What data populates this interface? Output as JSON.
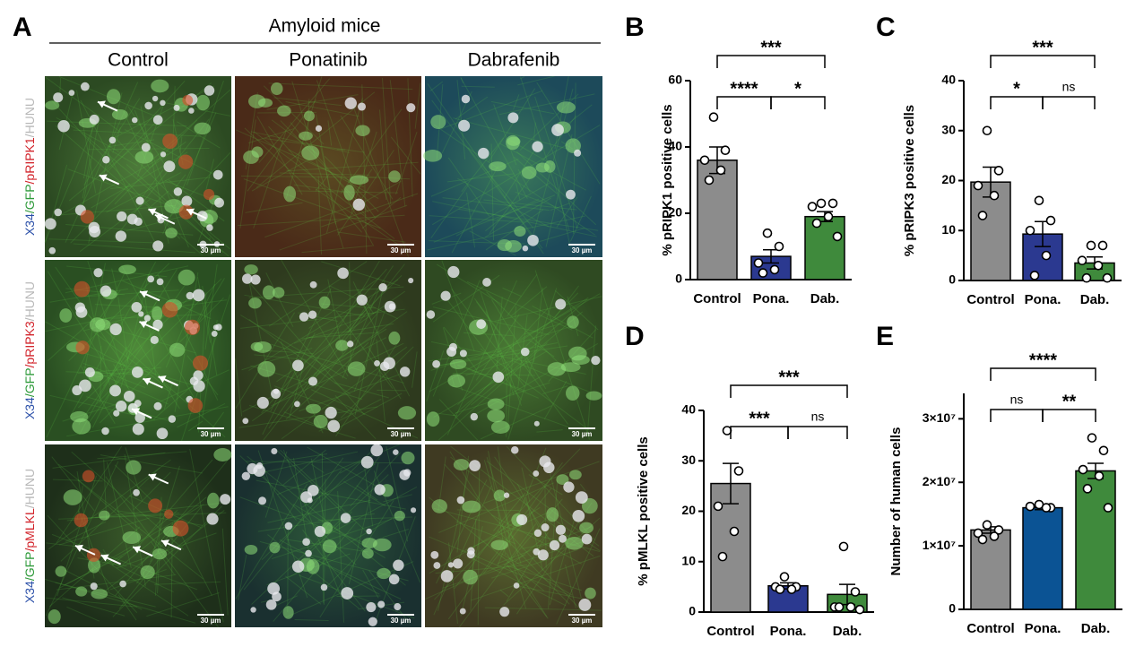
{
  "panel_a": {
    "label": "A",
    "group": "Amyloid mice",
    "columns": [
      "Control",
      "Ponatinib",
      "Dabrafenib"
    ],
    "rows": [
      [
        "X34",
        "/GFP",
        "/pRIPK1",
        "/HUNU"
      ],
      [
        "X34",
        "/GFP",
        "/pRIPK3",
        "/HUNU"
      ],
      [
        "X34",
        "/GFP",
        "/pMLKL",
        "/HUNU"
      ]
    ],
    "scale_bar": "30 µm"
  },
  "chart_data": [
    {
      "type": "bar",
      "label": "B",
      "ylabel": "% pRIPK1 positive cells",
      "categories": [
        "Control",
        "Pona.",
        "Dab."
      ],
      "colors": [
        "#8c8c8c",
        "#2b3990",
        "#3f8a3c"
      ],
      "values": [
        36,
        7,
        19
      ],
      "errors": [
        4,
        2,
        1.5
      ],
      "points": [
        [
          49,
          39,
          36,
          33,
          30
        ],
        [
          14,
          10,
          5,
          3,
          2
        ],
        [
          23,
          23,
          22,
          19,
          17,
          13
        ]
      ],
      "ylim": [
        0,
        60
      ],
      "yticks": [
        0,
        20,
        40,
        60
      ],
      "significance": [
        {
          "text": "****",
          "pair": [
            0,
            1
          ]
        },
        {
          "text": "*",
          "pair": [
            1,
            2
          ]
        },
        {
          "text": "***",
          "pair": [
            0,
            2
          ]
        }
      ]
    },
    {
      "type": "bar",
      "label": "C",
      "ylabel": "% pRIPK3 positive cells",
      "categories": [
        "Control",
        "Pona.",
        "Dab."
      ],
      "colors": [
        "#8c8c8c",
        "#2b3990",
        "#3f8a3c"
      ],
      "values": [
        19.7,
        9.3,
        3.5
      ],
      "errors": [
        3,
        2.5,
        1.2
      ],
      "points": [
        [
          30,
          22,
          19,
          17,
          13
        ],
        [
          16,
          12,
          10,
          5,
          1
        ],
        [
          7,
          7,
          4,
          3,
          0.5,
          0.5
        ]
      ],
      "ylim": [
        0,
        40
      ],
      "yticks": [
        0,
        10,
        20,
        30,
        40
      ],
      "significance": [
        {
          "text": "*",
          "pair": [
            0,
            1
          ]
        },
        {
          "text": "ns",
          "pair": [
            1,
            2
          ]
        },
        {
          "text": "***",
          "pair": [
            0,
            2
          ]
        }
      ]
    },
    {
      "type": "bar",
      "label": "D",
      "ylabel": "% pMLKL positive cells",
      "categories": [
        "Control",
        "Pona.",
        "Dab."
      ],
      "colors": [
        "#8c8c8c",
        "#2b3990",
        "#3f8a3c"
      ],
      "values": [
        25.5,
        5.2,
        3.5
      ],
      "errors": [
        4,
        0.6,
        2
      ],
      "points": [
        [
          36,
          28,
          21,
          16,
          11
        ],
        [
          7,
          5,
          5,
          4.5,
          4.5
        ],
        [
          13,
          4,
          1,
          1,
          1,
          0.5
        ]
      ],
      "ylim": [
        0,
        40
      ],
      "yticks": [
        0,
        10,
        20,
        30,
        40
      ],
      "significance": [
        {
          "text": "***",
          "pair": [
            0,
            1
          ]
        },
        {
          "text": "ns",
          "pair": [
            1,
            2
          ]
        },
        {
          "text": "***",
          "pair": [
            0,
            2
          ]
        }
      ]
    },
    {
      "type": "bar",
      "label": "E",
      "ylabel": "Number of human cells",
      "categories": [
        "Control",
        "Pona.",
        "Dab."
      ],
      "colors": [
        "#8c8c8c",
        "#0b5394",
        "#3f8a3c"
      ],
      "values": [
        12500000,
        16000000,
        21800000
      ],
      "errors": [
        500000,
        300000,
        1200000
      ],
      "points": [
        [
          13300000,
          12500000,
          12000000,
          11500000,
          11000000
        ],
        [
          16500000,
          16000000,
          16200000,
          16000000
        ],
        [
          27000000,
          25000000,
          22000000,
          21000000,
          19000000,
          16000000
        ]
      ],
      "ylim": [
        0,
        34000000
      ],
      "yticks": [
        0,
        {
          "value": 10000000,
          "label": "1×10⁷"
        },
        {
          "value": 20000000,
          "label": "2×10⁷"
        },
        {
          "value": 30000000,
          "label": "3×10⁷"
        }
      ],
      "significance": [
        {
          "text": "ns",
          "pair": [
            0,
            1
          ]
        },
        {
          "text": "**",
          "pair": [
            1,
            2
          ]
        },
        {
          "text": "****",
          "pair": [
            0,
            2
          ]
        }
      ]
    }
  ]
}
